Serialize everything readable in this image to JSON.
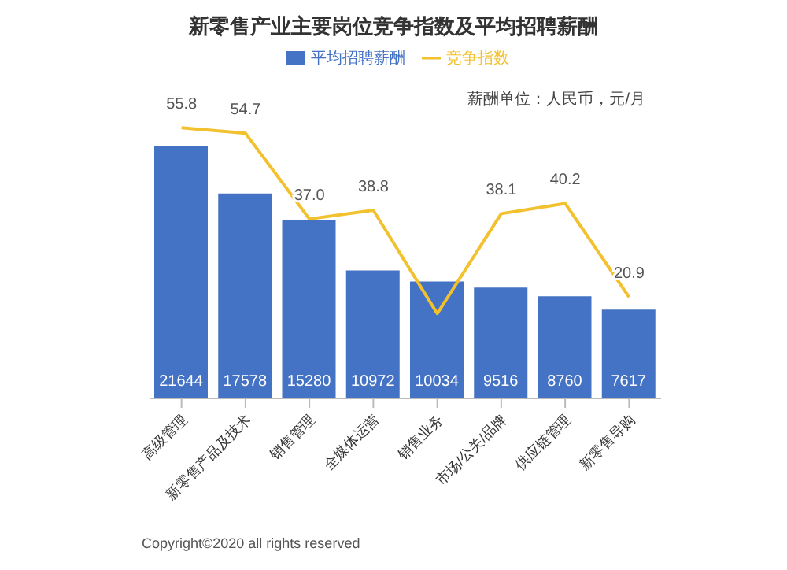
{
  "chart_data": {
    "type": "bar",
    "title": "新零售产业主要岗位竞争指数及平均招聘薪酬",
    "categories": [
      "高级管理",
      "新零售产品及技术",
      "销售管理",
      "全媒体运营",
      "销售业务",
      "市场/公关/品牌",
      "供应链管理",
      "新零售导购"
    ],
    "series": [
      {
        "name": "平均招聘薪酬",
        "color": "#4472c4",
        "values": [
          21644,
          17578,
          15280,
          10972,
          10034,
          9516,
          8760,
          7617
        ],
        "value_labels": [
          "21644",
          "17578",
          "15280",
          "10972",
          "10034",
          "9516",
          "8760",
          "7617"
        ]
      },
      {
        "name": "竞争指数",
        "type": "line",
        "axis": "y2",
        "color": "#f2c12e",
        "values": [
          55.8,
          54.7,
          37.0,
          38.8,
          17.5,
          38.1,
          40.2,
          20.9
        ],
        "value_labels": [
          "55.8",
          "54.7",
          "37.0",
          "38.8",
          null,
          "38.1",
          "40.2",
          "20.9"
        ]
      }
    ],
    "legend": "top",
    "marker": "none",
    "annotations": [
      "薪酬单位：人民币，元/月",
      "Copyright©2020 all rights reserved"
    ]
  }
}
